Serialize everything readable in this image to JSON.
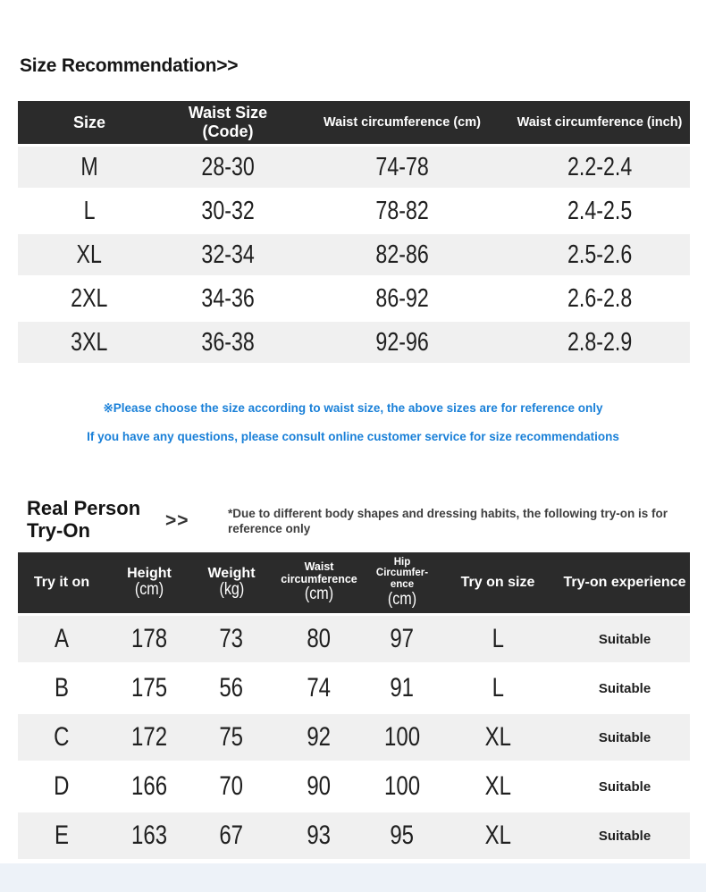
{
  "page": {
    "title": "Size Recommendation>>",
    "colors": {
      "header_bg": "#2b2b2b",
      "row_stripe": "#f0f0f0",
      "note_blue": "#1a80d8",
      "footer_bg": "#edf2f8"
    }
  },
  "size_table": {
    "headers": [
      "Size",
      "Waist Size (Code)",
      "Waist circumference (cm)",
      "Waist circumference (inch)"
    ],
    "rows": [
      [
        "M",
        "28-30",
        "74-78",
        "2.2-2.4"
      ],
      [
        "L",
        "30-32",
        "78-82",
        "2.4-2.5"
      ],
      [
        "XL",
        "32-34",
        "82-86",
        "2.5-2.6"
      ],
      [
        "2XL",
        "34-36",
        "86-92",
        "2.6-2.8"
      ],
      [
        "3XL",
        "36-38",
        "92-96",
        "2.8-2.9"
      ]
    ]
  },
  "notes": {
    "line1": "※Please choose the size according to waist size, the above sizes are for reference only",
    "line2": "If you have any questions, please consult online customer service for size recommendations"
  },
  "try_on": {
    "heading_line1": "Real Person",
    "heading_line2": "Try-On",
    "chevrons": ">>",
    "disclaimer": "*Due to different body shapes and dressing habits, the following try-on is for reference only",
    "table": {
      "columns": [
        {
          "line1": "Try it on",
          "line2": "",
          "sub": ""
        },
        {
          "line1": "Height",
          "line2": "",
          "sub": "(cm)"
        },
        {
          "line1": "Weight",
          "line2": "",
          "sub": "(kg)"
        },
        {
          "line1": "Waist",
          "line2": "circumference",
          "sub": "(cm)"
        },
        {
          "line1": "Hip Circumfer-",
          "line2": "ence",
          "sub": "(cm)"
        },
        {
          "line1": "Try on size",
          "line2": "",
          "sub": ""
        },
        {
          "line1": "Try-on experience",
          "line2": "",
          "sub": ""
        }
      ],
      "rows": [
        [
          "A",
          "178",
          "73",
          "80",
          "97",
          "L",
          "Suitable"
        ],
        [
          "B",
          "175",
          "56",
          "74",
          "91",
          "L",
          "Suitable"
        ],
        [
          "C",
          "172",
          "75",
          "92",
          "100",
          "XL",
          "Suitable"
        ],
        [
          "D",
          "166",
          "70",
          "90",
          "100",
          "XL",
          "Suitable"
        ],
        [
          "E",
          "163",
          "67",
          "93",
          "95",
          "XL",
          "Suitable"
        ]
      ]
    }
  }
}
